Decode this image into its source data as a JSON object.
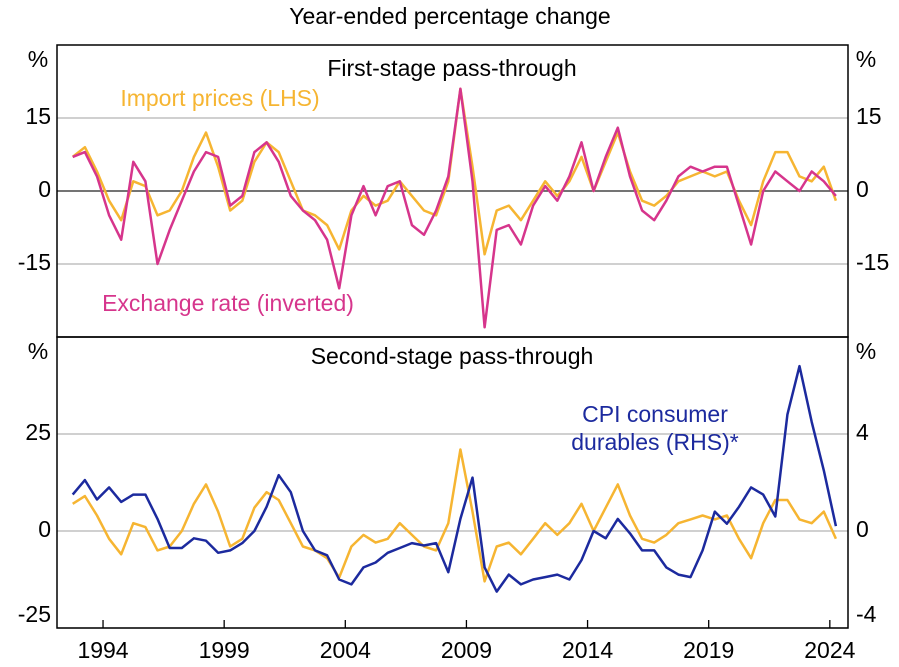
{
  "title": "Year-ended percentage change",
  "chart_data": [
    {
      "type": "line",
      "title": "First-stage pass-through",
      "y_label": "%",
      "y2_label": "%",
      "xlim": [
        1992.1,
        2024.75
      ],
      "ylim": [
        -30,
        30
      ],
      "yticks": [
        -15,
        0,
        15
      ],
      "y2lim": [
        -30,
        30
      ],
      "y2ticks": [
        -15,
        0,
        15
      ],
      "grid": true,
      "zero_line": true,
      "x": [
        1992.75,
        1993.25,
        1993.75,
        1994.25,
        1994.75,
        1995.25,
        1995.75,
        1996.25,
        1996.75,
        1997.25,
        1997.75,
        1998.25,
        1998.75,
        1999.25,
        1999.75,
        2000.25,
        2000.75,
        2001.25,
        2001.75,
        2002.25,
        2002.75,
        2003.25,
        2003.75,
        2004.25,
        2004.75,
        2005.25,
        2005.75,
        2006.25,
        2006.75,
        2007.25,
        2007.75,
        2008.25,
        2008.75,
        2009.25,
        2009.75,
        2010.25,
        2010.75,
        2011.25,
        2011.75,
        2012.25,
        2012.75,
        2013.25,
        2013.75,
        2014.25,
        2014.75,
        2015.25,
        2015.75,
        2016.25,
        2016.75,
        2017.25,
        2017.75,
        2018.25,
        2018.75,
        2019.25,
        2019.75,
        2020.25,
        2020.75,
        2021.25,
        2021.75,
        2022.25,
        2022.75,
        2023.25,
        2023.75,
        2024.25
      ],
      "series": [
        {
          "name": "Import prices (LHS)",
          "color": "#f6b532",
          "values": [
            7,
            9,
            4,
            -2,
            -6,
            2,
            1,
            -5,
            -4,
            0,
            7,
            12,
            5,
            -4,
            -2,
            6,
            10,
            8,
            2,
            -4,
            -5,
            -7,
            -12,
            -4,
            -1,
            -3,
            -2,
            2,
            -1,
            -4,
            -5,
            2,
            21,
            5,
            -13,
            -4,
            -3,
            -6,
            -2,
            2,
            -1,
            2,
            7,
            0,
            6,
            12,
            4,
            -2,
            -3,
            -1,
            2,
            3,
            4,
            3,
            4,
            -2,
            -7,
            2,
            8,
            8,
            3,
            2,
            5,
            -2
          ]
        },
        {
          "name": "Exchange rate (inverted)",
          "color": "#d6358c",
          "values": [
            7,
            8,
            3,
            -5,
            -10,
            6,
            2,
            -15,
            -8,
            -2,
            4,
            8,
            7,
            -3,
            -1,
            8,
            10,
            6,
            -1,
            -4,
            -6,
            -10,
            -20,
            -5,
            1,
            -5,
            1,
            2,
            -7,
            -9,
            -4,
            3,
            21,
            2,
            -28,
            -8,
            -7,
            -11,
            -3,
            1,
            -2,
            3,
            10,
            0,
            7,
            13,
            3,
            -4,
            -6,
            -2,
            3,
            5,
            4,
            5,
            5,
            -3,
            -11,
            0,
            4,
            2,
            0,
            4,
            2,
            -1
          ]
        }
      ]
    },
    {
      "type": "line",
      "title": "Second-stage pass-through",
      "y_label": "%",
      "y2_label": "%",
      "xlim": [
        1992.1,
        2024.75
      ],
      "ylim": [
        -25,
        50
      ],
      "yticks": [
        -25,
        0,
        25
      ],
      "y2lim": [
        -4,
        8
      ],
      "y2ticks": [
        -4,
        0,
        4
      ],
      "xticks": [
        1994,
        1999,
        2004,
        2009,
        2014,
        2019,
        2024
      ],
      "grid": true,
      "x": [
        1992.75,
        1993.25,
        1993.75,
        1994.25,
        1994.75,
        1995.25,
        1995.75,
        1996.25,
        1996.75,
        1997.25,
        1997.75,
        1998.25,
        1998.75,
        1999.25,
        1999.75,
        2000.25,
        2000.75,
        2001.25,
        2001.75,
        2002.25,
        2002.75,
        2003.25,
        2003.75,
        2004.25,
        2004.75,
        2005.25,
        2005.75,
        2006.25,
        2006.75,
        2007.25,
        2007.75,
        2008.25,
        2008.75,
        2009.25,
        2009.75,
        2010.25,
        2010.75,
        2011.25,
        2011.75,
        2012.25,
        2012.75,
        2013.25,
        2013.75,
        2014.25,
        2014.75,
        2015.25,
        2015.75,
        2016.25,
        2016.75,
        2017.25,
        2017.75,
        2018.25,
        2018.75,
        2019.25,
        2019.75,
        2020.25,
        2020.75,
        2021.25,
        2021.75,
        2022.25,
        2022.75,
        2023.25,
        2023.75,
        2024.25
      ],
      "series": [
        {
          "name": "Import prices (LHS)",
          "color": "#f6b532",
          "values": [
            7,
            9,
            4,
            -2,
            -6,
            2,
            1,
            -5,
            -4,
            0,
            7,
            12,
            5,
            -4,
            -2,
            6,
            10,
            8,
            2,
            -4,
            -5,
            -7,
            -12,
            -4,
            -1,
            -3,
            -2,
            2,
            -1,
            -4,
            -5,
            2,
            21,
            5,
            -13,
            -4,
            -3,
            -6,
            -2,
            2,
            -1,
            2,
            7,
            0,
            6,
            12,
            4,
            -2,
            -3,
            -1,
            2,
            3,
            4,
            3,
            4,
            -2,
            -7,
            2,
            8,
            8,
            3,
            2,
            5,
            -2
          ]
        },
        {
          "name": "CPI consumer durables (RHS)*",
          "color": "#1c2a9e",
          "axis": "y2",
          "values": [
            1.5,
            2.1,
            1.3,
            1.8,
            1.2,
            1.5,
            1.5,
            0.5,
            -0.7,
            -0.7,
            -0.3,
            -0.4,
            -0.9,
            -0.8,
            -0.5,
            0,
            1,
            2.3,
            1.6,
            0,
            -0.8,
            -1,
            -2,
            -2.2,
            -1.5,
            -1.3,
            -0.9,
            -0.7,
            -0.5,
            -0.6,
            -0.5,
            -1.7,
            0.5,
            2.2,
            -1.5,
            -2.5,
            -1.8,
            -2.2,
            -2,
            -1.9,
            -1.8,
            -2,
            -1.2,
            0,
            -0.3,
            0.5,
            -0.1,
            -0.8,
            -0.8,
            -1.5,
            -1.8,
            -1.9,
            -0.8,
            0.8,
            0.3,
            1,
            1.8,
            1.5,
            0.6,
            4.8,
            6.8,
            4.5,
            2.5,
            0.2
          ]
        }
      ]
    }
  ]
}
